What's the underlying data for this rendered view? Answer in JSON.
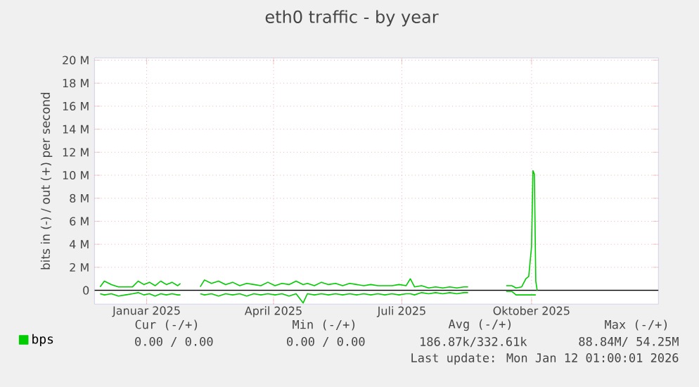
{
  "chart_data": {
    "type": "line",
    "title": "eth0 traffic - by year",
    "ylabel": "bits in (-) / out (+) per second",
    "x": [
      "2024-12-14",
      "2024-12-17",
      "2024-12-22",
      "2024-12-27",
      "2025-01-01",
      "2025-01-06",
      "2025-01-10",
      "2025-01-14",
      "2025-01-18",
      "2025-01-22",
      "2025-01-26",
      "2025-01-30",
      "2025-02-03",
      "2025-02-07",
      "2025-02-09",
      "2025-02-16",
      "2025-02-23",
      "2025-02-26",
      "2025-03-03",
      "2025-03-08",
      "2025-03-13",
      "2025-03-18",
      "2025-03-23",
      "2025-03-28",
      "2025-04-02",
      "2025-04-07",
      "2025-04-12",
      "2025-04-17",
      "2025-04-22",
      "2025-04-27",
      "2025-05-02",
      "2025-05-07",
      "2025-05-10",
      "2025-05-15",
      "2025-05-20",
      "2025-05-25",
      "2025-05-30",
      "2025-06-04",
      "2025-06-09",
      "2025-06-14",
      "2025-06-19",
      "2025-06-24",
      "2025-06-29",
      "2025-07-04",
      "2025-07-09",
      "2025-07-14",
      "2025-07-19",
      "2025-07-22",
      "2025-07-25",
      "2025-07-30",
      "2025-08-04",
      "2025-08-09",
      "2025-08-14",
      "2025-08-19",
      "2025-08-24",
      "2025-08-29",
      "2025-09-01",
      "2025-09-15",
      "2025-09-28",
      "2025-10-02",
      "2025-10-05",
      "2025-10-09",
      "2025-10-12",
      "2025-10-14",
      "2025-10-16",
      "2025-10-17",
      "2025-10-18",
      "2025-10-19",
      "2025-10-20"
    ],
    "series": [
      {
        "name": "bps",
        "color": "#00cc00",
        "values": [
          0.3,
          0.8,
          0.5,
          0.3,
          0.3,
          0.3,
          0.8,
          0.5,
          0.7,
          0.4,
          0.8,
          0.5,
          0.7,
          0.4,
          0.6,
          null,
          0.3,
          0.9,
          0.6,
          0.8,
          0.5,
          0.7,
          0.4,
          0.6,
          0.5,
          0.4,
          0.7,
          0.4,
          0.6,
          0.5,
          0.8,
          0.5,
          0.6,
          0.4,
          0.7,
          0.5,
          0.6,
          0.4,
          0.6,
          0.5,
          0.4,
          0.5,
          0.4,
          0.4,
          0.4,
          0.5,
          0.4,
          1.0,
          0.3,
          0.4,
          0.2,
          0.3,
          0.2,
          0.3,
          0.2,
          0.3,
          0.3,
          null,
          0.4,
          0.4,
          0.2,
          0.3,
          1.0,
          1.2,
          3.8,
          10.4,
          10.1,
          0.8,
          0.0
        ]
      },
      {
        "color": "#00cc00",
        "values": [
          -0.3,
          -0.4,
          -0.3,
          -0.5,
          -0.4,
          -0.3,
          -0.2,
          -0.4,
          -0.3,
          -0.5,
          -0.3,
          -0.4,
          -0.3,
          -0.4,
          -0.4,
          null,
          -0.3,
          -0.4,
          -0.3,
          -0.5,
          -0.3,
          -0.4,
          -0.3,
          -0.5,
          -0.3,
          -0.4,
          -0.3,
          -0.4,
          -0.3,
          -0.5,
          -0.3,
          -1.1,
          -0.3,
          -0.4,
          -0.3,
          -0.4,
          -0.3,
          -0.4,
          -0.3,
          -0.4,
          -0.3,
          -0.4,
          -0.3,
          -0.4,
          -0.3,
          -0.4,
          -0.3,
          -0.3,
          -0.4,
          -0.2,
          -0.3,
          -0.2,
          -0.3,
          -0.2,
          -0.3,
          -0.2,
          -0.2,
          null,
          -0.1,
          -0.1,
          -0.4,
          -0.4,
          -0.4,
          -0.4,
          -0.4,
          -0.4,
          -0.4,
          -0.4,
          null
        ]
      }
    ],
    "xlim": [
      "2024-12-10",
      "2026-01-14"
    ],
    "xticks": [
      {
        "value": "2025-01-16",
        "label": "Januar 2025"
      },
      {
        "value": "2025-04-16",
        "label": "April 2025"
      },
      {
        "value": "2025-07-16",
        "label": "Juli 2025"
      },
      {
        "value": "2025-10-16",
        "label": "Oktober 2025"
      }
    ],
    "ylim": [
      -1.2,
      20.2
    ],
    "yticks": [
      {
        "value": 0,
        "label": "0"
      },
      {
        "value": 2,
        "label": "2 M"
      },
      {
        "value": 4,
        "label": "4 M"
      },
      {
        "value": 6,
        "label": "6 M"
      },
      {
        "value": 8,
        "label": "8 M"
      },
      {
        "value": 10,
        "label": "10 M"
      },
      {
        "value": 12,
        "label": "12 M"
      },
      {
        "value": 14,
        "label": "14 M"
      },
      {
        "value": 16,
        "label": "16 M"
      },
      {
        "value": 18,
        "label": "18 M"
      },
      {
        "value": 20,
        "label": "20 M"
      }
    ],
    "ref_lines": [
      {
        "axis": "y",
        "value": 0,
        "color": "#000000"
      }
    ],
    "grid": true,
    "legend": "bottom left",
    "marker": "none",
    "line_style": "solid",
    "annotations": [
      "Cur (-/+)",
      "Min (-/+)",
      "Avg (-/+)",
      "Max (-/+)",
      "0.00 /   0.00",
      "0.00 /   0.00",
      "186.87k/332.61k",
      "88.84M/ 54.25M",
      "Last update: Mon Jan 12 01:00:01 2026"
    ]
  }
}
